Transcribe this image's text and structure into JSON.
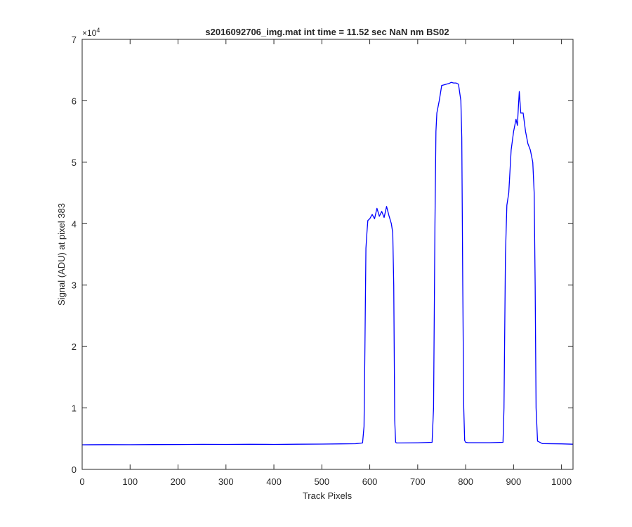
{
  "chart_data": {
    "type": "line",
    "title": "s2016092706_img.mat int time = 11.52 sec  NaN nm BS02",
    "xlabel": "Track Pixels",
    "ylabel": "Signal (ADU) at pixel 383",
    "xlim": [
      0,
      1024
    ],
    "ylim": [
      0,
      70000
    ],
    "xticks": [
      0,
      100,
      200,
      300,
      400,
      500,
      600,
      700,
      800,
      900,
      1000
    ],
    "yticks": [
      0,
      10000,
      20000,
      30000,
      40000,
      50000,
      60000,
      70000
    ],
    "ytick_labels": [
      "0",
      "1",
      "2",
      "3",
      "4",
      "5",
      "6",
      "7"
    ],
    "y_exponent": {
      "base": "×10",
      "power": "4"
    },
    "grid": false,
    "legend": "none",
    "series": [
      {
        "color": "#0000ff",
        "x": [
          0,
          50,
          100,
          150,
          200,
          250,
          300,
          350,
          400,
          450,
          500,
          540,
          570,
          585,
          588,
          590,
          592,
          594,
          596,
          600,
          605,
          610,
          615,
          620,
          625,
          630,
          635,
          640,
          645,
          648,
          650,
          652,
          654,
          656,
          660,
          700,
          730,
          733,
          736,
          738,
          740,
          745,
          750,
          755,
          760,
          765,
          770,
          775,
          780,
          785,
          790,
          792,
          794,
          796,
          798,
          800,
          805,
          850,
          878,
          880,
          883,
          886,
          890,
          895,
          900,
          905,
          908,
          910,
          912,
          915,
          920,
          925,
          930,
          935,
          940,
          943,
          945,
          947,
          950,
          960,
          1000,
          1024
        ],
        "y": [
          4000,
          4030,
          4010,
          4040,
          4050,
          4070,
          4060,
          4080,
          4060,
          4090,
          4120,
          4150,
          4180,
          4300,
          7000,
          20000,
          36000,
          38500,
          40500,
          40800,
          41500,
          40800,
          42500,
          41200,
          42000,
          41000,
          42800,
          41300,
          40000,
          38500,
          30000,
          8000,
          4400,
          4300,
          4300,
          4330,
          4400,
          10000,
          40000,
          55000,
          58000,
          60000,
          62500,
          62600,
          62700,
          62800,
          63000,
          62900,
          62900,
          62700,
          60000,
          54000,
          30000,
          10000,
          4700,
          4400,
          4350,
          4350,
          4400,
          10000,
          35000,
          43000,
          45000,
          52000,
          55000,
          57000,
          56000,
          59000,
          61500,
          58000,
          58000,
          55000,
          53000,
          52000,
          50000,
          45000,
          30000,
          10000,
          4600,
          4200,
          4150,
          4100
        ]
      }
    ]
  }
}
